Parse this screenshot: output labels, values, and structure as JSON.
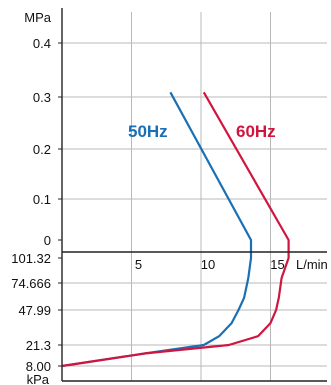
{
  "chart_data": {
    "type": "line",
    "xlabel": "L/min",
    "upper_ylabel": "MPa",
    "lower_ylabel": "kPa",
    "x_ticks": [
      "5",
      "10",
      "15"
    ],
    "xlim": [
      0,
      18
    ],
    "upper_ticks": [
      "0.4",
      "0.3",
      "0.2",
      "0.1",
      "0"
    ],
    "upper_ylim": [
      0,
      0.45
    ],
    "lower_ticks": [
      "101.32",
      "74.666",
      "47.99",
      "21.3",
      "8.00"
    ],
    "grid": true,
    "series": [
      {
        "name": "50Hz",
        "color": "#1a6fb5",
        "pressure_values": [
          {
            "x": 7.8,
            "y": 0.3
          },
          {
            "x": 13.6,
            "y": 0
          }
        ],
        "vacuum_values": [
          {
            "x": 13.6,
            "y": 101.32
          },
          {
            "x": 13.4,
            "y": 80
          },
          {
            "x": 13.1,
            "y": 60
          },
          {
            "x": 12.7,
            "y": 47.99
          },
          {
            "x": 12.2,
            "y": 38
          },
          {
            "x": 11.3,
            "y": 28
          },
          {
            "x": 10.2,
            "y": 21.3
          },
          {
            "x": 6.0,
            "y": 16
          },
          {
            "x": 0,
            "y": 8.0
          }
        ]
      },
      {
        "name": "60Hz",
        "color": "#d0163f",
        "pressure_values": [
          {
            "x": 10.2,
            "y": 0.3
          },
          {
            "x": 16.3,
            "y": 0
          }
        ],
        "vacuum_values": [
          {
            "x": 16.3,
            "y": 101.32
          },
          {
            "x": 15.8,
            "y": 80
          },
          {
            "x": 15.6,
            "y": 60
          },
          {
            "x": 15.4,
            "y": 47.99
          },
          {
            "x": 15.0,
            "y": 38
          },
          {
            "x": 14.1,
            "y": 28
          },
          {
            "x": 12.0,
            "y": 21.3
          },
          {
            "x": 6.0,
            "y": 16
          },
          {
            "x": 0,
            "y": 8.0
          }
        ]
      }
    ]
  }
}
